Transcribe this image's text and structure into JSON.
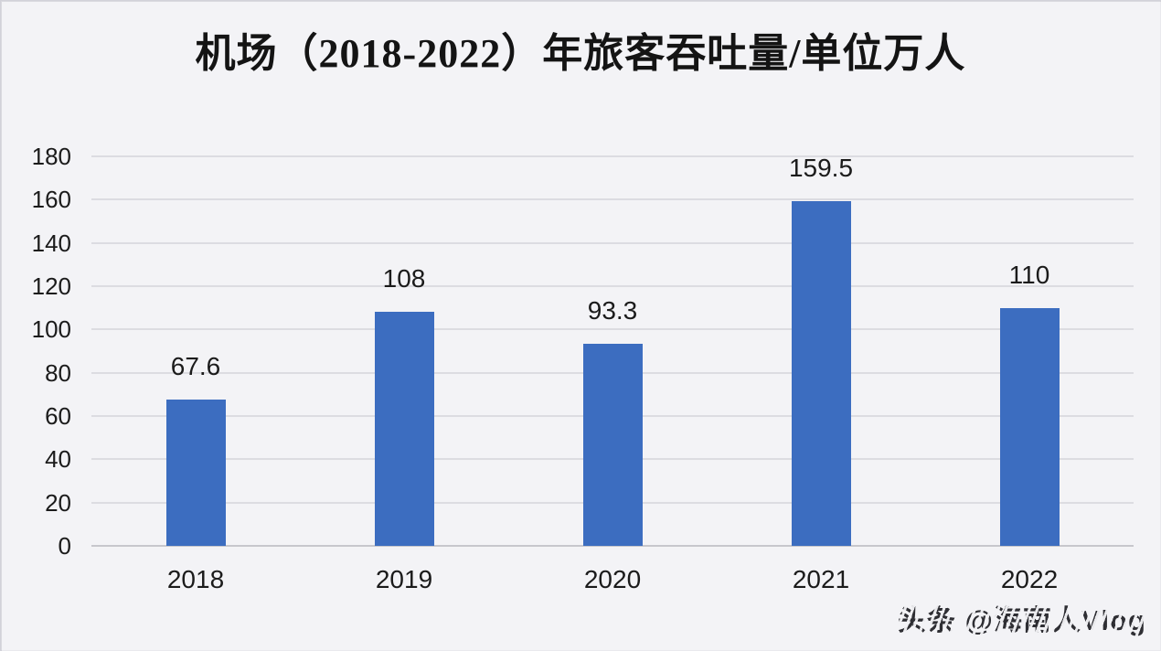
{
  "title": "机场（2018-2022）年旅客吞吐量/单位万人",
  "watermark": "头条 @海南人Vlog",
  "colors": {
    "background": "#f3f3f6",
    "bar": "#3c6dc0",
    "grid": "#dcdce1",
    "axis": "#c7c7cc",
    "text": "#1b1b1b"
  },
  "chart_data": {
    "type": "bar",
    "title": "机场（2018-2022）年旅客吞吐量/单位万人",
    "categories": [
      "2018",
      "2019",
      "2020",
      "2021",
      "2022"
    ],
    "values": [
      67.6,
      108,
      93.3,
      159.5,
      110
    ],
    "data_labels": [
      "67.6",
      "108",
      "93.3",
      "159.5",
      "110"
    ],
    "xlabel": "",
    "ylabel": "",
    "ylim": [
      0,
      180
    ],
    "yticks": [
      0,
      20,
      40,
      60,
      80,
      100,
      120,
      140,
      160,
      180
    ],
    "grid": true,
    "legend": false
  }
}
